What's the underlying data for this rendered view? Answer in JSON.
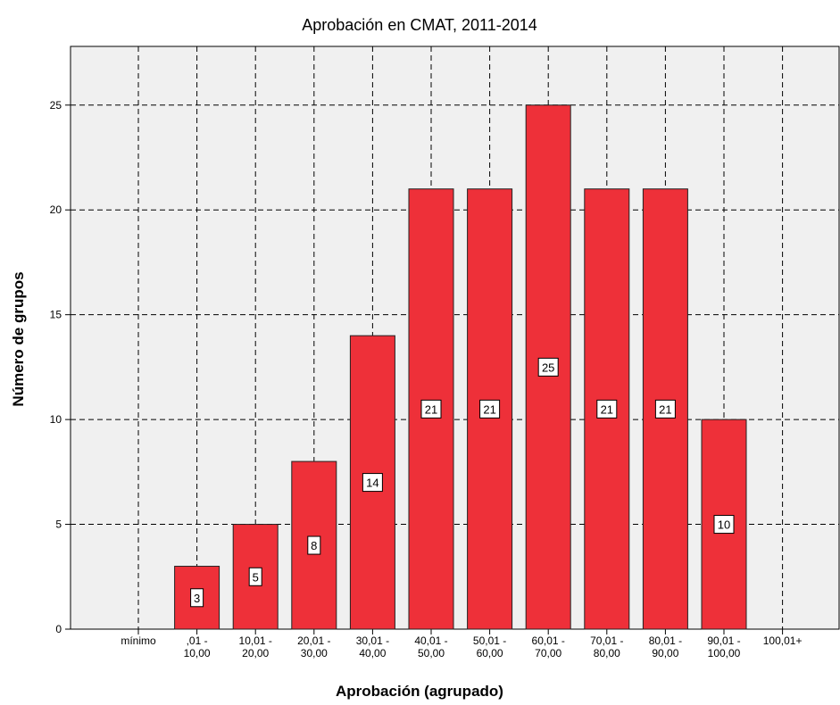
{
  "chart_data": {
    "type": "bar",
    "title": "Aprobación en CMAT, 2011-2014",
    "x_label": "Aprobación (agrupado)",
    "y_label": "Número de grupos",
    "categories": [
      "mínimo",
      ",01 -\n10,00",
      "10,01 -\n20,00",
      "20,01 -\n30,00",
      "30,01 -\n40,00",
      "40,01 -\n50,00",
      "50,01 -\n60,00",
      "60,01 -\n70,00",
      "70,01 -\n80,00",
      "80,01 -\n90,00",
      "90,01 -\n100,00",
      "100,01+"
    ],
    "values": [
      null,
      3,
      5,
      8,
      14,
      21,
      21,
      25,
      21,
      21,
      10,
      null
    ],
    "color": "#ee3039",
    "ylim": [
      0,
      27.8
    ],
    "yticks": [
      0,
      5,
      10,
      15,
      20,
      25
    ],
    "grid": true
  }
}
